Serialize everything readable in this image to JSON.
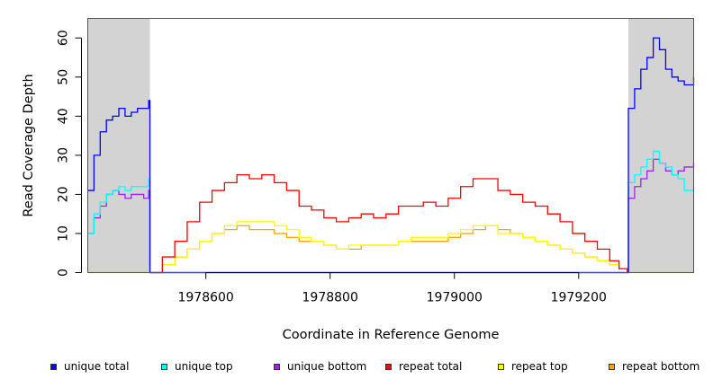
{
  "chart_data": {
    "type": "line",
    "title": "",
    "xlabel": "Coordinate in Reference Genome",
    "ylabel": "Read Coverage Depth",
    "xlim": [
      1978410,
      1979385
    ],
    "ylim": [
      0,
      65
    ],
    "xticks": [
      1978600,
      1978800,
      1979000,
      1979200
    ],
    "xtick_labels": [
      "1978600",
      "1978800",
      "1979000",
      "1979200"
    ],
    "yticks": [
      0,
      10,
      20,
      30,
      40,
      50,
      60
    ],
    "ytick_labels": [
      "0",
      "10",
      "20",
      "30",
      "40",
      "50",
      "60"
    ],
    "grid": false,
    "legend_position": "bottom",
    "shaded_regions": [
      {
        "x0": 1978410,
        "x1": 1978510,
        "color": "#d3d3d3"
      },
      {
        "x0": 1979280,
        "x1": 1979385,
        "color": "#d3d3d3"
      }
    ],
    "series": [
      {
        "name": "unique total",
        "color": "#0000ff",
        "x": [
          1978410,
          1978420,
          1978430,
          1978440,
          1978450,
          1978460,
          1978470,
          1978480,
          1978490,
          1978500,
          1978508,
          1978510,
          1979278,
          1979280,
          1979290,
          1979300,
          1979310,
          1979320,
          1979330,
          1979340,
          1979350,
          1979360,
          1979370,
          1979385
        ],
        "y": [
          21,
          30,
          36,
          39,
          40,
          42,
          40,
          41,
          42,
          42,
          44,
          0,
          0,
          42,
          47,
          52,
          55,
          60,
          57,
          52,
          50,
          49,
          48,
          50
        ]
      },
      {
        "name": "unique top",
        "color": "#00ffff",
        "x": [
          1978410,
          1978420,
          1978430,
          1978440,
          1978450,
          1978460,
          1978470,
          1978480,
          1978490,
          1978500,
          1978508,
          1978510,
          1979278,
          1979280,
          1979290,
          1979300,
          1979310,
          1979320,
          1979330,
          1979340,
          1979350,
          1979360,
          1979370,
          1979385
        ],
        "y": [
          10,
          15,
          18,
          20,
          21,
          22,
          21,
          22,
          22,
          22,
          24,
          0,
          0,
          23,
          25,
          27,
          29,
          31,
          28,
          27,
          25,
          24,
          21,
          22
        ]
      },
      {
        "name": "unique bottom",
        "color": "#a020f0",
        "x": [
          1978410,
          1978420,
          1978430,
          1978440,
          1978450,
          1978460,
          1978470,
          1978480,
          1978490,
          1978500,
          1978508,
          1978510,
          1979278,
          1979280,
          1979290,
          1979300,
          1979310,
          1979320,
          1979330,
          1979340,
          1979350,
          1979360,
          1979370,
          1979385
        ],
        "y": [
          10,
          14,
          17,
          20,
          21,
          20,
          19,
          20,
          20,
          19,
          21,
          0,
          0,
          19,
          22,
          24,
          26,
          29,
          28,
          26,
          25,
          26,
          27,
          28
        ]
      },
      {
        "name": "repeat total",
        "color": "#ff0000",
        "x": [
          1978510,
          1978530,
          1978550,
          1978570,
          1978590,
          1978610,
          1978630,
          1978650,
          1978670,
          1978690,
          1978710,
          1978730,
          1978750,
          1978770,
          1978790,
          1978810,
          1978830,
          1978850,
          1978870,
          1978890,
          1978910,
          1978930,
          1978950,
          1978970,
          1978990,
          1979010,
          1979030,
          1979050,
          1979070,
          1979090,
          1979110,
          1979130,
          1979150,
          1979170,
          1979190,
          1979210,
          1979230,
          1979250,
          1979265,
          1979278
        ],
        "y": [
          0,
          4,
          8,
          13,
          18,
          21,
          23,
          25,
          24,
          25,
          23,
          21,
          17,
          16,
          14,
          13,
          14,
          15,
          14,
          15,
          17,
          17,
          18,
          17,
          19,
          22,
          24,
          24,
          21,
          20,
          18,
          17,
          15,
          13,
          10,
          8,
          6,
          3,
          1,
          0
        ]
      },
      {
        "name": "repeat top",
        "color": "#ffff00",
        "x": [
          1978510,
          1978530,
          1978550,
          1978570,
          1978590,
          1978610,
          1978630,
          1978650,
          1978670,
          1978690,
          1978710,
          1978730,
          1978750,
          1978770,
          1978790,
          1978810,
          1978830,
          1978850,
          1978870,
          1978890,
          1978910,
          1978930,
          1978950,
          1978970,
          1978990,
          1979010,
          1979030,
          1979050,
          1979070,
          1979090,
          1979110,
          1979130,
          1979150,
          1979170,
          1979190,
          1979210,
          1979230,
          1979250,
          1979265,
          1979278
        ],
        "y": [
          0,
          2,
          4,
          6,
          8,
          10,
          12,
          13,
          13,
          13,
          12,
          11,
          9,
          8,
          7,
          6,
          7,
          7,
          7,
          7,
          8,
          9,
          9,
          9,
          10,
          11,
          12,
          12,
          10,
          10,
          9,
          8,
          7,
          6,
          5,
          4,
          3,
          2,
          1,
          0
        ]
      },
      {
        "name": "repeat bottom",
        "color": "#ffa500",
        "x": [
          1978410,
          1978510,
          1978530,
          1978550,
          1978570,
          1978590,
          1978610,
          1978630,
          1978650,
          1978670,
          1978690,
          1978710,
          1978730,
          1978750,
          1978770,
          1978790,
          1978810,
          1978830,
          1978850,
          1978870,
          1978890,
          1978910,
          1978930,
          1978950,
          1978970,
          1978990,
          1979010,
          1979030,
          1979050,
          1979070,
          1979090,
          1979110,
          1979130,
          1979150,
          1979170,
          1979190,
          1979210,
          1979230,
          1979250,
          1979265,
          1979278,
          1979385
        ],
        "y": [
          0,
          0,
          2,
          4,
          6,
          8,
          10,
          11,
          12,
          11,
          11,
          10,
          9,
          8,
          8,
          7,
          6,
          6,
          7,
          7,
          7,
          8,
          8,
          8,
          8,
          9,
          10,
          11,
          12,
          11,
          10,
          9,
          8,
          7,
          6,
          5,
          4,
          3,
          2,
          1,
          0,
          0
        ]
      }
    ]
  }
}
